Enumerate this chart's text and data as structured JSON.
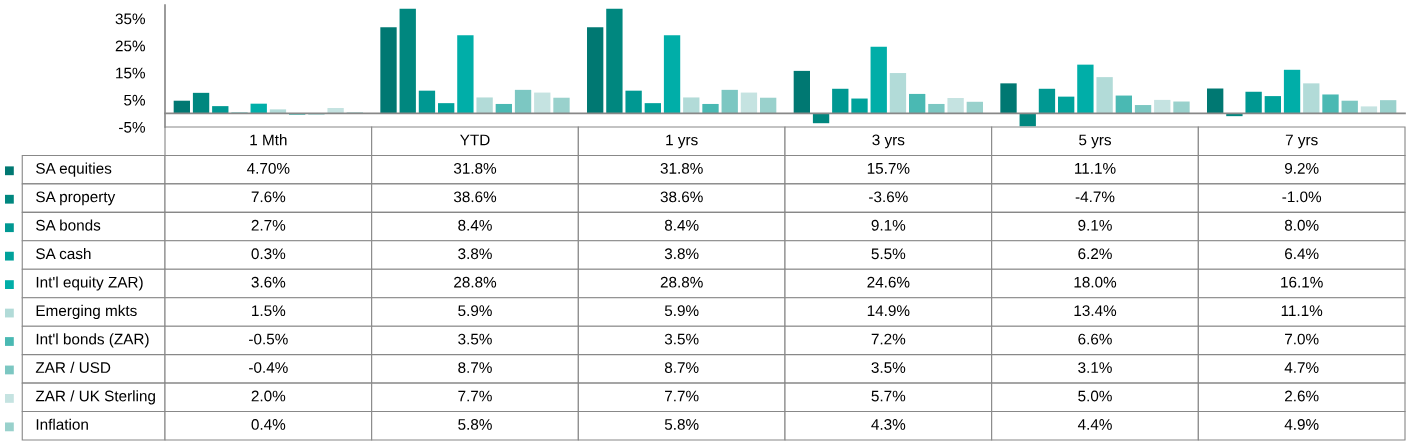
{
  "chart_data": {
    "type": "bar",
    "categories": [
      "1 Mth",
      "YTD",
      "1 yrs",
      "3 yrs",
      "5 yrs",
      "7 yrs"
    ],
    "ylim": [
      -5,
      40
    ],
    "yticks": [
      {
        "value": -5,
        "label": "-5%"
      },
      {
        "value": 5,
        "label": "5%"
      },
      {
        "value": 15,
        "label": "15%"
      },
      {
        "value": 25,
        "label": "25%"
      },
      {
        "value": 35,
        "label": "35%"
      }
    ],
    "grid": false,
    "legend": "left",
    "series": [
      {
        "name": "SA equities",
        "color": "#007872",
        "values": [
          4.7,
          31.8,
          31.8,
          15.7,
          11.1,
          9.2
        ],
        "value_labels": [
          "4.70%",
          "31.8%",
          "31.8%",
          "15.7%",
          "11.1%",
          "9.2%"
        ]
      },
      {
        "name": "SA property",
        "color": "#00877f",
        "values": [
          7.6,
          38.6,
          38.6,
          -3.6,
          -4.7,
          -1.0
        ],
        "value_labels": [
          "7.6%",
          "38.6%",
          "38.6%",
          "-3.6%",
          "-4.7%",
          "-1.0%"
        ]
      },
      {
        "name": "SA bonds",
        "color": "#009892",
        "values": [
          2.7,
          8.4,
          8.4,
          9.1,
          9.1,
          8.0
        ],
        "value_labels": [
          "2.7%",
          "8.4%",
          "8.4%",
          "9.1%",
          "9.1%",
          "8.0%"
        ]
      },
      {
        "name": "SA cash",
        "color": "#00a29b",
        "values": [
          0.3,
          3.8,
          3.8,
          5.5,
          6.2,
          6.4
        ],
        "value_labels": [
          "0.3%",
          "3.8%",
          "3.8%",
          "5.5%",
          "6.2%",
          "6.4%"
        ]
      },
      {
        "name": "Int'l equity ZAR)",
        "color": "#00aea8",
        "values": [
          3.6,
          28.8,
          28.8,
          24.6,
          18.0,
          16.1
        ],
        "value_labels": [
          "3.6%",
          "28.8%",
          "28.8%",
          "24.6%",
          "18.0%",
          "16.1%"
        ]
      },
      {
        "name": "Emerging mkts",
        "color": "#b2dbd8",
        "values": [
          1.5,
          5.9,
          5.9,
          14.9,
          13.4,
          11.1
        ],
        "value_labels": [
          "1.5%",
          "5.9%",
          "5.9%",
          "14.9%",
          "13.4%",
          "11.1%"
        ]
      },
      {
        "name": "Int'l bonds (ZAR)",
        "color": "#4ab9b3",
        "values": [
          -0.5,
          3.5,
          3.5,
          7.2,
          6.6,
          7.0
        ],
        "value_labels": [
          "-0.5%",
          "3.5%",
          "3.5%",
          "7.2%",
          "6.6%",
          "7.0%"
        ]
      },
      {
        "name": "ZAR / USD",
        "color": "#7cc7c2",
        "values": [
          -0.4,
          8.7,
          8.7,
          3.5,
          3.1,
          4.7
        ],
        "value_labels": [
          "-0.4%",
          "8.7%",
          "8.7%",
          "3.5%",
          "3.1%",
          "4.7%"
        ]
      },
      {
        "name": "ZAR / UK Sterling",
        "color": "#c5e3e1",
        "values": [
          2.0,
          7.7,
          7.7,
          5.7,
          5.0,
          2.6
        ],
        "value_labels": [
          "2.0%",
          "7.7%",
          "7.7%",
          "5.7%",
          "5.0%",
          "2.6%"
        ]
      },
      {
        "name": "Inflation",
        "color": "#99d1cc",
        "values": [
          0.4,
          5.8,
          5.8,
          4.3,
          4.4,
          4.9
        ],
        "value_labels": [
          "0.4%",
          "5.8%",
          "5.8%",
          "4.3%",
          "4.4%",
          "4.9%"
        ]
      }
    ]
  }
}
